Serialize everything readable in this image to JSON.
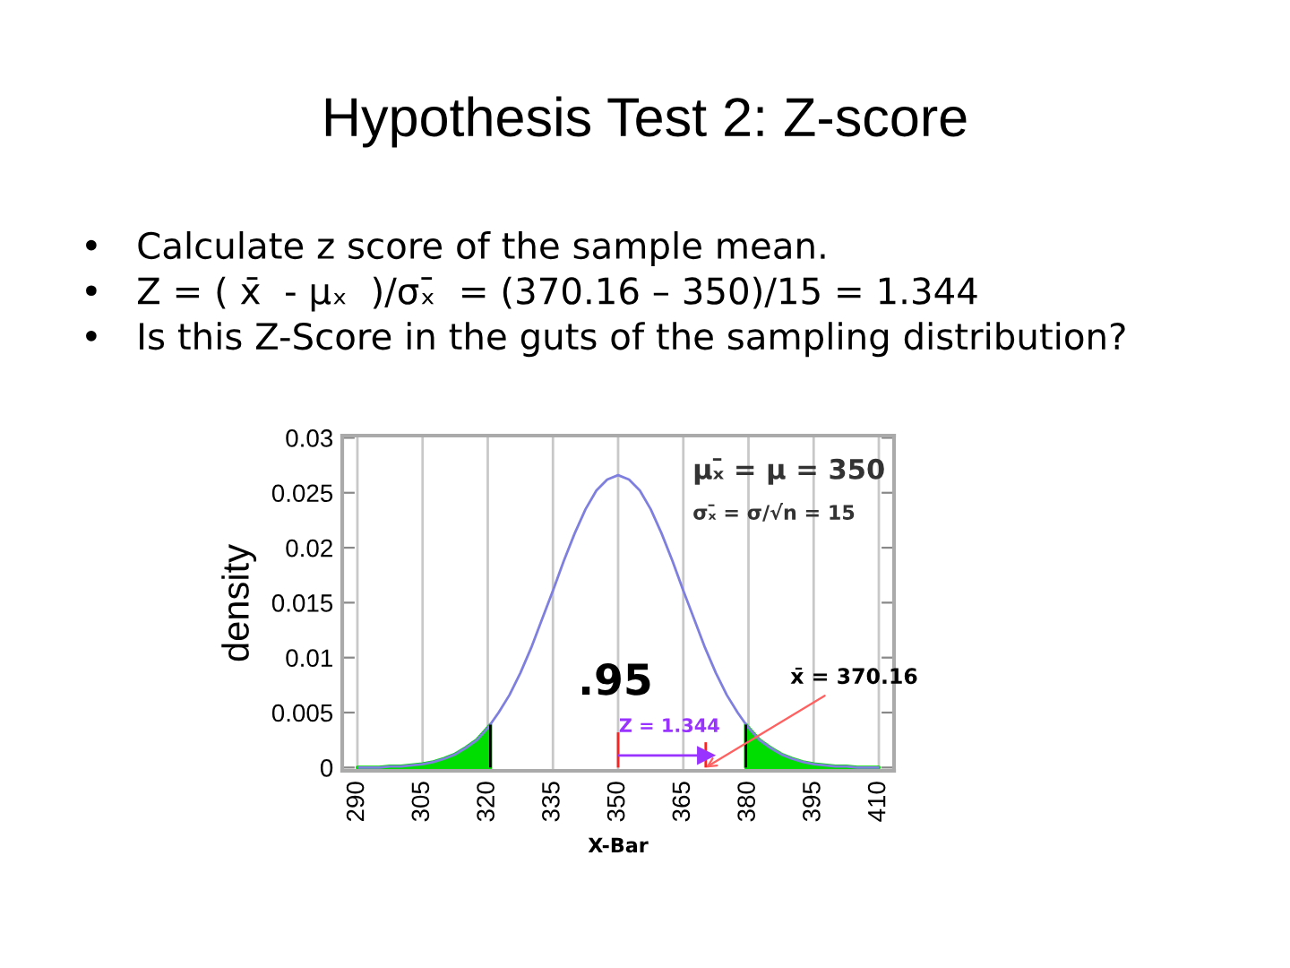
{
  "chart_data": {
    "type": "line",
    "title": "Hypothesis Test 2: Z-score",
    "subtitle": "•   Calculate z score of the sample mean.\n•   Z = ( x̄  - μₓ  )/σₓ̄  = (370.16 – 350)/15 = 1.344\n•   Is this Z-Score in the guts of the sampling distribution?",
    "xlabel": "X-Bar",
    "ylabel": "density",
    "annotations": [
      "μₓ̄ = μ = 350",
      "σₓ̄ = σ/√n = 15",
      ".95",
      "Z = 1.344",
      {
        "text": "x̄ = 370.16",
        "x": 370.16,
        "y": 0
      }
    ],
    "series": [
      {
        "color": "#7f7fdf",
        "x": [
          290,
          292.5,
          295,
          297.5,
          300,
          302.5,
          305,
          307.5,
          310,
          312.5,
          315,
          317.5,
          320,
          322.5,
          325,
          327.5,
          330,
          332.5,
          335,
          337.5,
          340,
          342.5,
          345,
          347.5,
          350,
          352.5,
          355,
          357.5,
          360,
          362.5,
          365,
          367.5,
          370,
          372.5,
          375,
          377.5,
          380,
          382.5,
          385,
          387.5,
          390,
          392.5,
          395,
          397.5,
          400,
          402.5,
          405,
          407.5,
          410
        ],
        "values": [
          0,
          0,
          0,
          0.0001,
          0.0001,
          0.0002,
          0.0003,
          0.0005,
          0.0008,
          0.0012,
          0.0018,
          0.0025,
          0.0036,
          0.005,
          0.0066,
          0.0086,
          0.0109,
          0.0135,
          0.0161,
          0.0188,
          0.0213,
          0.0235,
          0.0252,
          0.0262,
          0.0266,
          0.0262,
          0.0252,
          0.0235,
          0.0213,
          0.0188,
          0.0161,
          0.0135,
          0.0109,
          0.0086,
          0.0066,
          0.005,
          0.0036,
          0.0025,
          0.0018,
          0.0012,
          0.0008,
          0.0005,
          0.0003,
          0.0002,
          0.0001,
          0.0001,
          0,
          0,
          0
        ]
      },
      {
        "type": "area",
        "color": "#00dd00",
        "x": [
          290,
          292.5,
          295,
          297.5,
          300,
          302.5,
          305,
          307.5,
          310,
          312.5,
          315,
          317.5,
          320,
          320.6
        ],
        "values": [
          0,
          0,
          0,
          0.0001,
          0.0001,
          0.0002,
          0.0003,
          0.0005,
          0.0008,
          0.0012,
          0.0018,
          0.0025,
          0.0036,
          0.0039
        ]
      },
      {
        "type": "area",
        "color": "#00dd00",
        "x": [
          379.4,
          380,
          382.5,
          385,
          387.5,
          390,
          392.5,
          395,
          397.5,
          400,
          402.5,
          405,
          407.5,
          410
        ],
        "values": [
          0.0039,
          0.0036,
          0.0025,
          0.0018,
          0.0012,
          0.0008,
          0.0005,
          0.0003,
          0.0002,
          0.0001,
          0.0001,
          0,
          0,
          0
        ]
      },
      {
        "type": "line",
        "color": "#000000",
        "x": [
          320.6,
          320.6
        ],
        "values": [
          0,
          0.0039
        ]
      },
      {
        "type": "line",
        "color": "#000000",
        "x": [
          379.4,
          379.4
        ],
        "values": [
          0,
          0.0039
        ]
      },
      {
        "type": "line",
        "color": "#ff2020",
        "x": [
          350,
          350
        ],
        "values": [
          0,
          0.0032
        ]
      },
      {
        "type": "line",
        "color": "#ff2020",
        "x": [
          370.16,
          370.16
        ],
        "values": [
          0,
          0.0023
        ]
      },
      {
        "type": "line",
        "color": "#9933ff",
        "x": [
          350,
          370.16
        ],
        "values": [
          0.0011,
          0.0011
        ],
        "marker": "triangle"
      }
    ],
    "xlim": [
      286.5,
      413.5
    ],
    "ylim": [
      -0.0003,
      0.0302
    ],
    "xticks": [
      290,
      305,
      320,
      335,
      350,
      365,
      380,
      395,
      410
    ],
    "yticks": [
      0,
      0.005,
      0.01,
      0.015,
      0.02,
      0.025,
      0.03
    ],
    "grid": "x"
  }
}
